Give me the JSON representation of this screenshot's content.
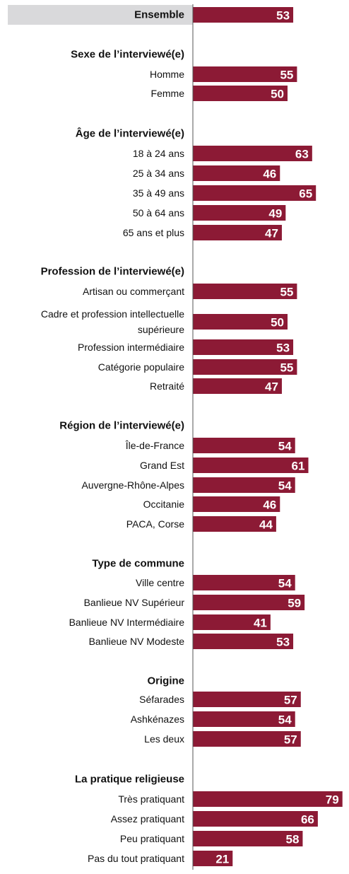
{
  "colors": {
    "bar": "#8c1a35",
    "highlight": "#d9d9db",
    "axis": "#555555",
    "text": "#111111",
    "value_text": "#ffffff"
  },
  "chart_data": {
    "type": "bar",
    "orientation": "horizontal",
    "xlim": [
      0,
      80
    ],
    "grid": false,
    "legend": "none",
    "groups": [
      {
        "header": "",
        "items": [
          {
            "label": "Ensemble",
            "value": 53,
            "highlight": true
          }
        ]
      },
      {
        "header": "Sexe de l’interviewé(e)",
        "items": [
          {
            "label": "Homme",
            "value": 55
          },
          {
            "label": "Femme",
            "value": 50
          }
        ]
      },
      {
        "header": "Âge de l’interviewé(e)",
        "items": [
          {
            "label": "18 à 24 ans",
            "value": 63
          },
          {
            "label": "25 à 34 ans",
            "value": 46
          },
          {
            "label": "35 à 49 ans",
            "value": 65
          },
          {
            "label": "50 à 64 ans",
            "value": 49
          },
          {
            "label": "65 ans et plus",
            "value": 47
          }
        ]
      },
      {
        "header": "Profession de l’interviewé(e)",
        "items": [
          {
            "label": "Artisan ou commerçant",
            "value": 55
          },
          {
            "label": [
              "Cadre et profession intellectuelle",
              "supérieure"
            ],
            "value": 50
          },
          {
            "label": "Profession intermédiaire",
            "value": 53
          },
          {
            "label": "Catégorie populaire",
            "value": 55
          },
          {
            "label": "Retraité",
            "value": 47
          }
        ]
      },
      {
        "header": "Région de l’interviewé(e)",
        "items": [
          {
            "label": "Île-de-France",
            "value": 54
          },
          {
            "label": "Grand Est",
            "value": 61
          },
          {
            "label": "Auvergne-Rhône-Alpes",
            "value": 54
          },
          {
            "label": "Occitanie",
            "value": 46
          },
          {
            "label": "PACA, Corse",
            "value": 44
          }
        ]
      },
      {
        "header": "Type de commune",
        "items": [
          {
            "label": "Ville centre",
            "value": 54
          },
          {
            "label": "Banlieue NV Supérieur",
            "value": 59
          },
          {
            "label": "Banlieue NV Intermédiaire",
            "value": 41
          },
          {
            "label": "Banlieue NV Modeste",
            "value": 53
          }
        ]
      },
      {
        "header": "Origine",
        "items": [
          {
            "label": "Séfarades",
            "value": 57
          },
          {
            "label": "Ashkénazes",
            "value": 54
          },
          {
            "label": "Les deux",
            "value": 57
          }
        ]
      },
      {
        "header": "La pratique religieuse",
        "items": [
          {
            "label": "Très pratiquant",
            "value": 79
          },
          {
            "label": "Assez pratiquant",
            "value": 66
          },
          {
            "label": "Peu pratiquant",
            "value": 58
          },
          {
            "label": "Pas du tout pratiquant",
            "value": 21
          }
        ]
      }
    ]
  }
}
